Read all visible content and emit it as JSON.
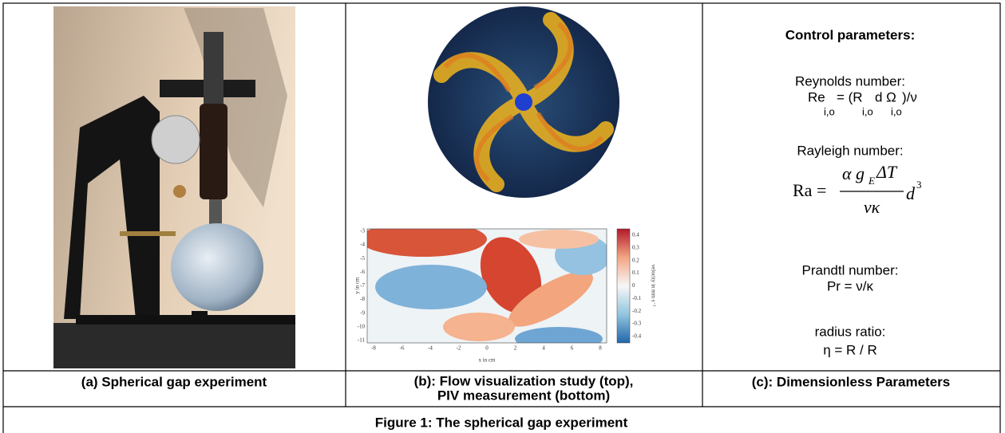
{
  "panels": [
    {
      "caption": "(a) Spherical gap experiment"
    },
    {
      "caption_lines": [
        "(b): Flow visualization study (top),",
        "PIV measurement (bottom)"
      ],
      "piv": {
        "y_ticks": [
          "-3",
          "-4",
          "-5",
          "-6",
          "-7",
          "-8",
          "-9",
          "-10",
          "-11"
        ],
        "x_ticks": [
          "-8",
          "-6",
          "-4",
          "-2",
          "0",
          "2",
          "4",
          "6",
          "8"
        ],
        "x_label": "x in cm",
        "y_label": "y in cm",
        "colorbar_ticks": [
          "0.4",
          "0.3",
          "0.2",
          "0.1",
          "0",
          "-0.1",
          "-0.2",
          "-0.3",
          "-0.4"
        ],
        "colorbar_label": "velocity in mm s⁻¹"
      }
    },
    {
      "caption": "(c): Dimensionless Parameters",
      "heading": "Control parameters:",
      "reynolds": {
        "label": "Reynolds number:",
        "parts": [
          "Re",
          "i,o",
          "= (R",
          "i,o",
          "d Ω",
          "i,o",
          ")/ν"
        ]
      },
      "rayleigh": {
        "label": "Rayleigh number:",
        "lhs": "Ra =",
        "numerator": "α g",
        "numerator_sub": "E",
        "numerator_rest": "ΔT",
        "denominator": "νκ",
        "factor": "d",
        "exponent": "3"
      },
      "prandtl": {
        "label": "Prandtl number:",
        "formula": "Pr = ν/κ"
      },
      "radius_ratio": {
        "label": "radius ratio:",
        "formula": "η = R  / R"
      }
    }
  ],
  "figure_caption": "Figure 1: The spherical gap experiment"
}
